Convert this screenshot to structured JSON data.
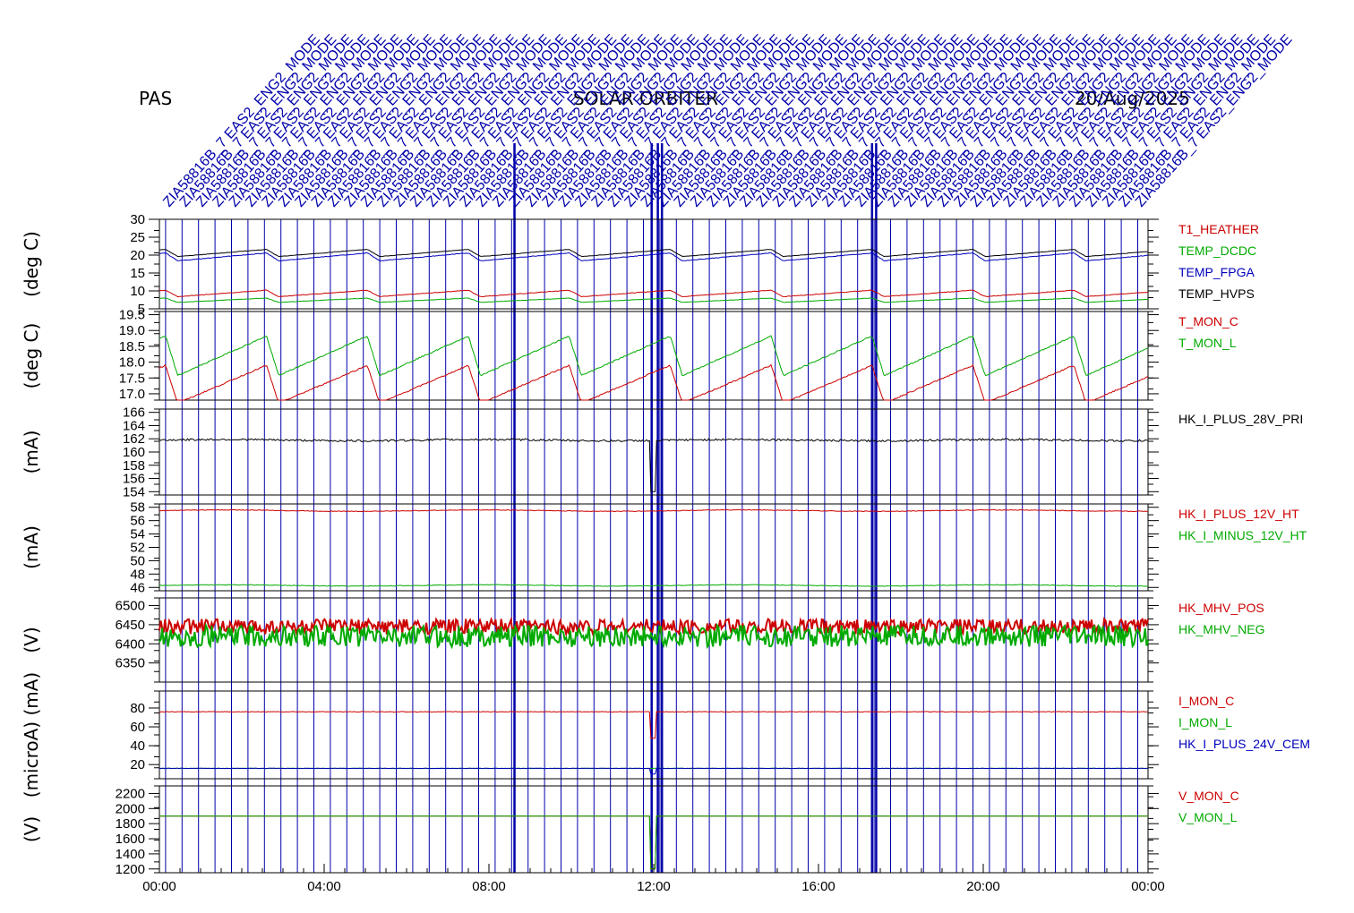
{
  "header": {
    "instrument": "PAS",
    "mission": "SOLAR ORBITER",
    "date": "20/Aug/2025"
  },
  "annotations": {
    "color": "#0000aa",
    "repeat_label_a": "ZIA58816B_7",
    "repeat_label_b": "EAS2_ENG2_MODE",
    "event_hours": [
      0.15,
      0.55,
      0.95,
      1.35,
      1.75,
      2.15,
      2.55,
      2.95,
      3.35,
      3.75,
      4.15,
      4.55,
      4.95,
      5.35,
      5.75,
      6.15,
      6.55,
      6.95,
      7.35,
      7.75,
      8.15,
      8.55,
      8.95,
      9.35,
      9.75,
      10.15,
      10.55,
      10.95,
      11.35,
      11.75,
      12.15,
      12.55,
      12.95,
      13.35,
      13.75,
      14.15,
      14.55,
      14.95,
      15.35,
      15.75,
      16.15,
      16.55,
      16.95,
      17.35,
      17.75,
      18.15,
      18.55,
      18.95,
      19.35,
      19.75,
      20.15,
      20.55,
      20.95,
      21.35,
      21.75,
      22.15,
      22.55,
      22.95,
      23.35,
      23.75
    ],
    "bold_event_hours": [
      8.62,
      11.95,
      12.1,
      12.2,
      17.3,
      17.4
    ]
  },
  "chart_data": {
    "type": "line",
    "x_unit": "UT",
    "x_range_hours": [
      0,
      24
    ],
    "x_ticks": [
      "00:00",
      "04:00",
      "08:00",
      "12:00",
      "16:00",
      "20:00",
      "00:00"
    ],
    "panels": [
      {
        "ylabel": "(deg C)",
        "ticks": [
          "5",
          "10",
          "15",
          "20",
          "25",
          "30"
        ],
        "ylim": [
          5,
          30
        ],
        "yticks": [
          5,
          10,
          15,
          20,
          25,
          30
        ],
        "series": [
          {
            "name": "T1_HEATHER",
            "color": "#cc0000",
            "base": 10.2,
            "amp": 1.8,
            "noise": 0.08
          },
          {
            "name": "TEMP_DCDC",
            "color": "#00aa00",
            "base": 8.0,
            "amp": 1.2,
            "noise": 0.05
          },
          {
            "name": "TEMP_FPGA",
            "color": "#0000bb",
            "base": 20.6,
            "amp": 2.2,
            "noise": 0.08
          },
          {
            "name": "TEMP_HVPS",
            "color": "#000000",
            "base": 21.6,
            "amp": 2.0,
            "noise": 0.06
          }
        ]
      },
      {
        "ylabel": "(deg C)",
        "ticks": [
          "17.0",
          "17.5",
          "18.0",
          "18.5",
          "19.0",
          "19.5"
        ],
        "ylim": [
          16.8,
          19.6
        ],
        "yticks": [
          17.0,
          17.5,
          18.0,
          18.5,
          19.0,
          19.5
        ],
        "series": [
          {
            "name": "T_MON_C",
            "color": "#cc0000",
            "base": 17.3,
            "amp": 1.2,
            "noise": 0.02
          },
          {
            "name": "T_MON_L",
            "color": "#00aa00",
            "base": 18.2,
            "amp": 1.25,
            "noise": 0.02
          }
        ]
      },
      {
        "ylabel": "(mA)",
        "ticks": [
          "166",
          "164",
          "162",
          "160",
          "158",
          "156",
          "154"
        ],
        "ylim": [
          153.5,
          166.5
        ],
        "yticks": [
          154,
          156,
          158,
          160,
          162,
          164,
          166
        ],
        "series": [
          {
            "name": "HK_I_PLUS_28V_PRI",
            "color": "#000000",
            "base": 161.8,
            "amp": 0.1,
            "noise": 0.15,
            "dip": 154.0
          }
        ]
      },
      {
        "ylabel": "(mA)",
        "ticks": [
          "58",
          "56",
          "54",
          "52",
          "50",
          "48",
          "46"
        ],
        "ylim": [
          45.5,
          58.5
        ],
        "yticks": [
          46,
          48,
          50,
          52,
          54,
          56,
          58
        ],
        "series": [
          {
            "name": "HK_I_PLUS_12V_HT",
            "color": "#cc0000",
            "base": 57.5,
            "amp": 0.1,
            "noise": 0.05
          },
          {
            "name": "HK_I_MINUS_12V_HT",
            "color": "#00aa00",
            "base": 46.3,
            "amp": 0.1,
            "noise": 0.05
          }
        ]
      },
      {
        "ylabel": "(V)",
        "ticks": [
          "6500",
          "6450",
          "6400",
          "6350"
        ],
        "ylim": [
          6300,
          6520
        ],
        "yticks": [
          6350,
          6400,
          6450,
          6500
        ],
        "series": [
          {
            "name": "HK_MHV_POS",
            "color": "#cc0000",
            "base": 6445,
            "amp": 0,
            "noise": 20
          },
          {
            "name": "HK_MHV_NEG",
            "color": "#00aa00",
            "base": 6420,
            "amp": 0,
            "noise": 28
          }
        ]
      },
      {
        "ylabel": "(microA) (mA)",
        "ticks": [
          "80",
          "60",
          "40",
          "20"
        ],
        "ylim": [
          5,
          98
        ],
        "yticks": [
          20,
          40,
          60,
          80
        ],
        "series": [
          {
            "name": "I_MON_C",
            "color": "#cc0000",
            "base": 76,
            "amp": 0,
            "noise": 0.3,
            "dip": 48
          },
          {
            "name": "I_MON_L",
            "color": "#00aa00",
            "base": 16,
            "amp": 0,
            "noise": 0.2
          },
          {
            "name": "HK_I_PLUS_24V_CEM",
            "color": "#0000bb",
            "base": 16,
            "amp": 0,
            "noise": 0.2,
            "dip": 10
          }
        ]
      },
      {
        "ylabel": "(V)",
        "ticks": [
          "2200",
          "2000",
          "1800",
          "1600",
          "1400",
          "1200"
        ],
        "ylim": [
          1150,
          2300
        ],
        "yticks": [
          1200,
          1400,
          1600,
          1800,
          2000,
          2200
        ],
        "series": [
          {
            "name": "V_MON_C",
            "color": "#cc0000",
            "base": 1900,
            "amp": 0,
            "noise": 0,
            "dip": 1200
          },
          {
            "name": "V_MON_L",
            "color": "#00aa00",
            "base": 1900,
            "amp": 0,
            "noise": 0,
            "dip": 1200
          }
        ]
      }
    ]
  }
}
